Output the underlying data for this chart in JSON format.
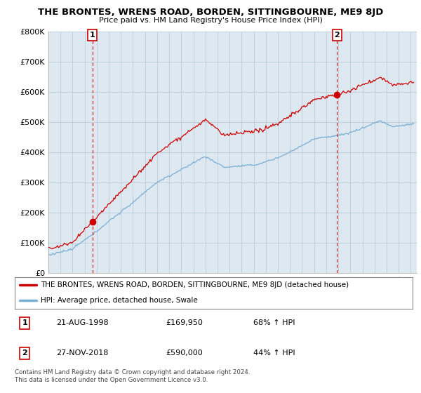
{
  "title": "THE BRONTES, WRENS ROAD, BORDEN, SITTINGBOURNE, ME9 8JD",
  "subtitle": "Price paid vs. HM Land Registry's House Price Index (HPI)",
  "ylabel_ticks": [
    "£0",
    "£100K",
    "£200K",
    "£300K",
    "£400K",
    "£500K",
    "£600K",
    "£700K",
    "£800K"
  ],
  "ylim": [
    0,
    800000
  ],
  "xlim_start": 1995.0,
  "xlim_end": 2025.5,
  "sale1_date": 1998.64,
  "sale1_price": 169950,
  "sale1_label": "1",
  "sale2_date": 2018.9,
  "sale2_price": 590000,
  "sale2_label": "2",
  "hpi_color": "#7aafd4",
  "property_color": "#cc0000",
  "chart_bg": "#dde8f0",
  "legend_property": "THE BRONTES, WRENS ROAD, BORDEN, SITTINGBOURNE, ME9 8JD (detached house)",
  "legend_hpi": "HPI: Average price, detached house, Swale",
  "table_row1": [
    "1",
    "21-AUG-1998",
    "£169,950",
    "68% ↑ HPI"
  ],
  "table_row2": [
    "2",
    "27-NOV-2018",
    "£590,000",
    "44% ↑ HPI"
  ],
  "footer": "Contains HM Land Registry data © Crown copyright and database right 2024.\nThis data is licensed under the Open Government Licence v3.0.",
  "background_color": "#ffffff",
  "grid_color": "#b8ccd8"
}
